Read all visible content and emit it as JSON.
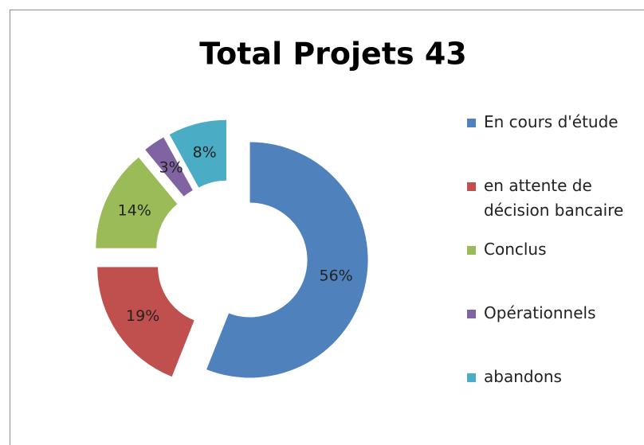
{
  "chart_data": {
    "type": "donut",
    "title": "Total Projets 43",
    "categories": [
      "En cours d'étude",
      "en attente de décision bancaire",
      "Conclus",
      "Opérationnels",
      "abandons"
    ],
    "values": [
      56,
      19,
      14,
      3,
      8
    ],
    "value_labels": [
      "56%",
      "19%",
      "14%",
      "3%",
      "8%"
    ],
    "colors": [
      "#4f81bd",
      "#c0504d",
      "#9bbb59",
      "#8064a2",
      "#4bacc6"
    ],
    "legend": "right"
  }
}
